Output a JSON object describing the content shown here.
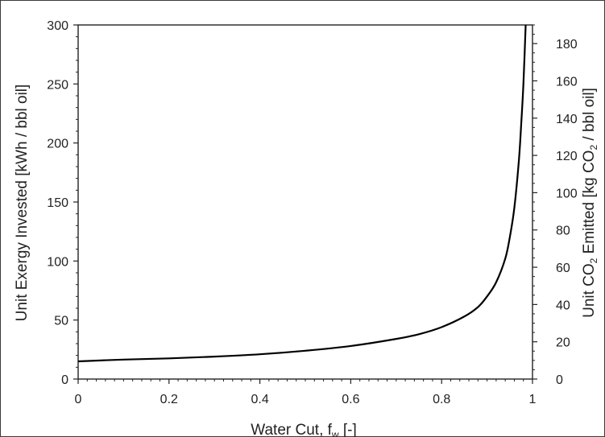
{
  "chart_data": {
    "type": "line",
    "title": "",
    "xlabel": "Water Cut, f",
    "xlabel_sub": "w",
    "xlabel_suffix": " [-]",
    "ylabel": "Unit Exergy Invested [kWh / bbl oil]",
    "y2label": "Unit CO",
    "y2label_sub": "2",
    "y2label_suffix": " Emitted  [kg CO",
    "y2label_sub2": "2",
    "y2label_end": " / bbl oil]",
    "xlim": [
      0,
      1
    ],
    "ylim": [
      0,
      300
    ],
    "y2lim": [
      0,
      190
    ],
    "xticks": [
      "0",
      "0.2",
      "0.4",
      "0.6",
      "0.8",
      "1"
    ],
    "xtick_values": [
      0,
      0.2,
      0.4,
      0.6,
      0.8,
      1
    ],
    "yticks": [
      "0",
      "50",
      "100",
      "150",
      "200",
      "250",
      "300"
    ],
    "ytick_values": [
      0,
      50,
      100,
      150,
      200,
      250,
      300
    ],
    "y2ticks": [
      "0",
      "20",
      "40",
      "60",
      "80",
      "100",
      "120",
      "140",
      "160",
      "180"
    ],
    "y2tick_values": [
      0,
      20,
      40,
      60,
      80,
      100,
      120,
      140,
      160,
      180
    ],
    "grid": false,
    "series": [
      {
        "color": "#000000",
        "x": [
          0,
          0.1,
          0.2,
          0.3,
          0.4,
          0.5,
          0.6,
          0.7,
          0.75,
          0.8,
          0.85,
          0.88,
          0.9,
          0.92,
          0.94,
          0.95,
          0.96,
          0.97,
          0.975,
          0.98,
          0.985
        ],
        "y": [
          15,
          16.5,
          17.5,
          19,
          21,
          24,
          28,
          34,
          38,
          44,
          53,
          61,
          70,
          82,
          102,
          120,
          145,
          185,
          215,
          250,
          300
        ]
      }
    ]
  }
}
